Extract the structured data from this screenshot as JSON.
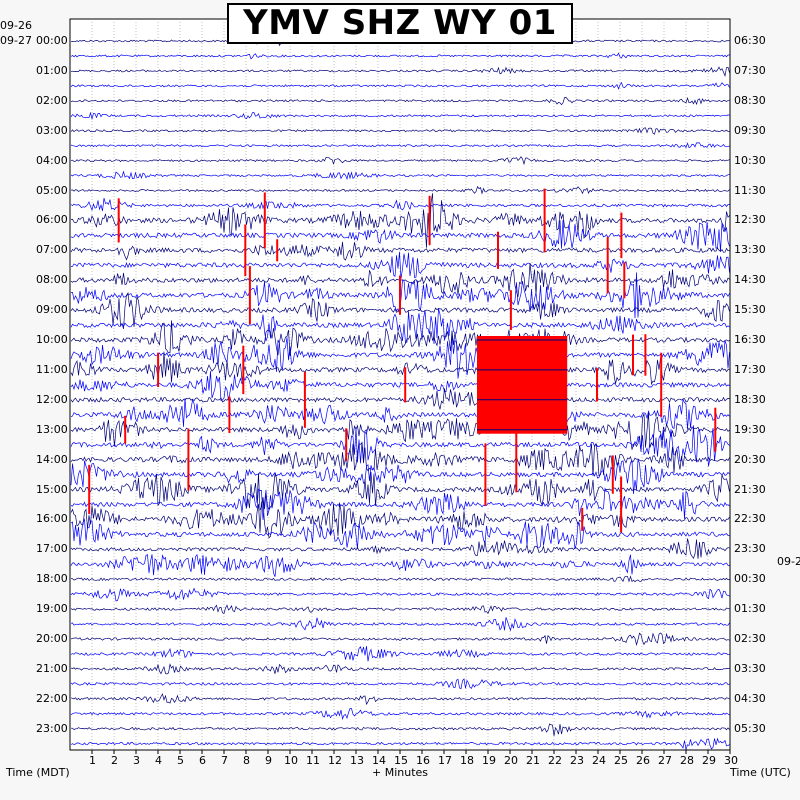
{
  "chart_data": {
    "type": "helicorder",
    "title": "YMV SHZ WY 01",
    "xlabel": "+ Minutes",
    "left_axis_title": "Time (MDT)",
    "right_axis_title": "Time (UTC)",
    "x_ticks": [
      "1",
      "2",
      "3",
      "4",
      "5",
      "6",
      "7",
      "8",
      "9",
      "10",
      "11",
      "12",
      "13",
      "14",
      "15",
      "16",
      "17",
      "18",
      "19",
      "20",
      "21",
      "22",
      "23",
      "24",
      "25",
      "26",
      "27",
      "28",
      "29",
      "30"
    ],
    "xlim": [
      0,
      30
    ],
    "left_date_top": "09-26",
    "left_date": "09-27",
    "right_date": "09-2",
    "left_hours": [
      "00:00",
      "01:00",
      "02:00",
      "03:00",
      "04:00",
      "05:00",
      "06:00",
      "07:00",
      "08:00",
      "09:00",
      "10:00",
      "11:00",
      "12:00",
      "13:00",
      "14:00",
      "15:00",
      "16:00",
      "17:00",
      "18:00",
      "19:00",
      "20:00",
      "21:00",
      "22:00",
      "23:00"
    ],
    "right_hours": [
      "06:30",
      "07:30",
      "08:30",
      "09:30",
      "10:30",
      "11:30",
      "12:30",
      "13:30",
      "14:30",
      "15:30",
      "16:30",
      "17:30",
      "18:30",
      "19:30",
      "20:30",
      "21:30",
      "22:30",
      "23:30",
      "00:30",
      "01:30",
      "02:30",
      "03:30",
      "04:30",
      "05:30"
    ],
    "trace_colors": [
      "#00007a",
      "#0000ff"
    ],
    "clip_color": "#ff0000",
    "lines_per_hour": 2,
    "saturated_block": {
      "start_minute": 18.5,
      "end_minute": 22.6,
      "start_line": 20,
      "end_line": 26
    }
  }
}
